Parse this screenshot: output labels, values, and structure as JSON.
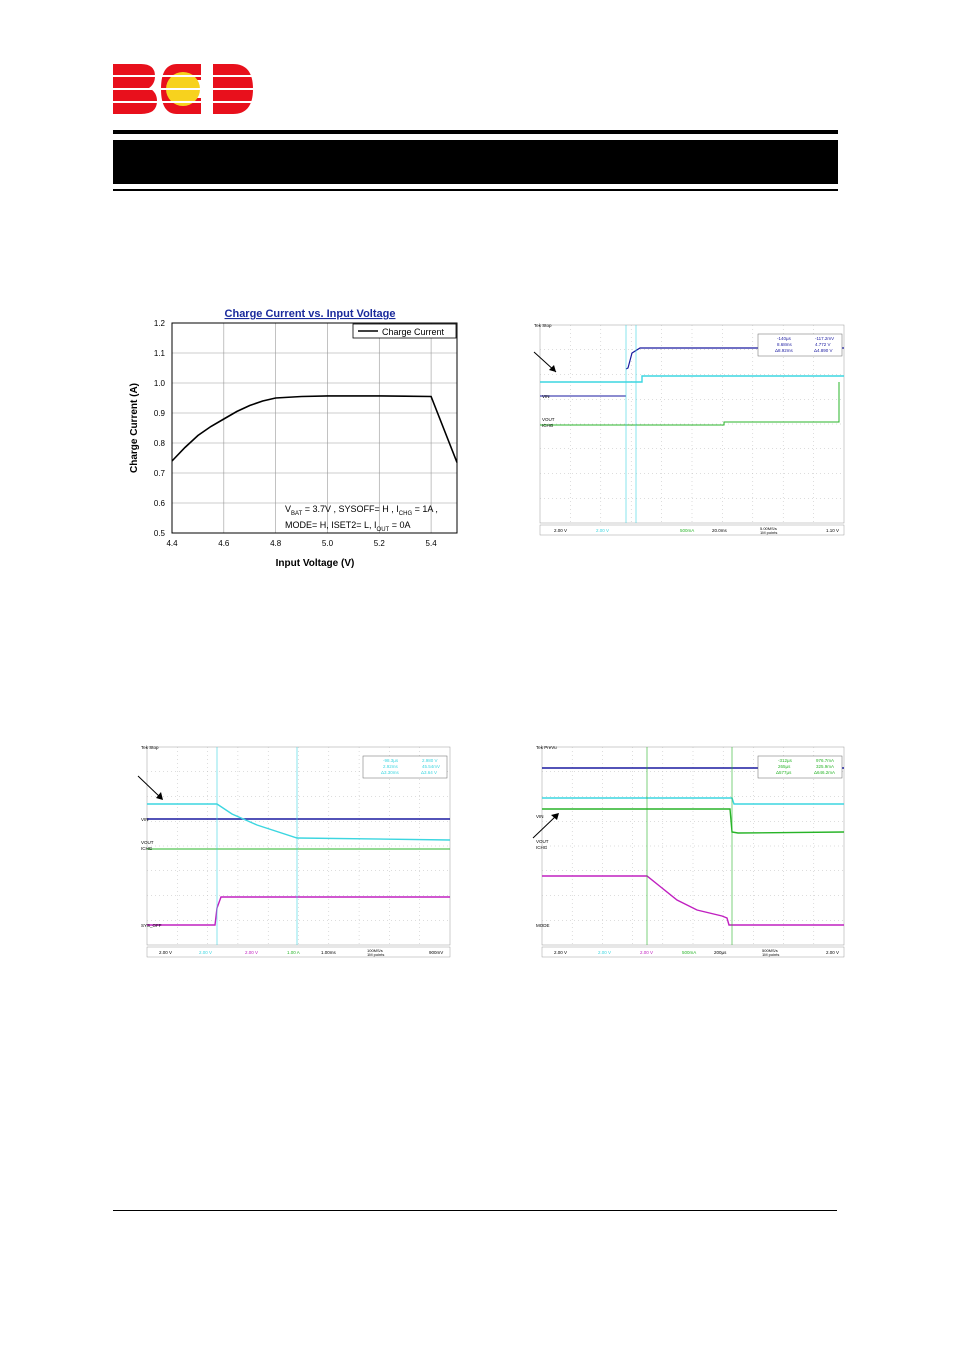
{
  "logo": {
    "text": "BCD",
    "color_primary": "#e8101c",
    "color_accent": "#f7d21e"
  },
  "chart_data": {
    "type": "line",
    "title": "Charge Current vs. Input Voltage",
    "xlabel": "Input Voltage (V)",
    "ylabel": "Charge Current (A)",
    "xlim": [
      4.4,
      5.5
    ],
    "ylim": [
      0.5,
      1.2
    ],
    "x_ticks": [
      "4.4",
      "4.6",
      "4.8",
      "5.0",
      "5.2",
      "5.4"
    ],
    "y_ticks": [
      "0.5",
      "0.6",
      "0.7",
      "0.8",
      "0.9",
      "1.0",
      "1.1",
      "1.2"
    ],
    "grid": true,
    "legend_position": "top-right",
    "series": [
      {
        "name": "Charge Current",
        "x": [
          4.4,
          4.45,
          4.5,
          4.55,
          4.6,
          4.65,
          4.7,
          4.75,
          4.8,
          4.9,
          5.0,
          5.1,
          5.2,
          5.3,
          5.4,
          5.5
        ],
        "y": [
          0.74,
          0.785,
          0.825,
          0.855,
          0.88,
          0.905,
          0.925,
          0.94,
          0.95,
          0.955,
          0.957,
          0.957,
          0.957,
          0.956,
          0.955,
          0.735
        ]
      }
    ],
    "annotation_line1": {
      "v": "V",
      "bat": "BAT",
      "rest1": " = 3.7V , SYSOFF= H , I",
      "chg": "CHG",
      "rest2": " = 1A ,"
    },
    "annotation_line2": {
      "pre": "MODE= H, ISET2= L, I",
      "out": "OUT",
      "post": " = 0A"
    }
  },
  "scopes": [
    {
      "status": "Tek Stop",
      "labels": [
        "VIN",
        "VOUT",
        "ICHG"
      ],
      "readout": [
        "-140µs",
        "-117.2mV",
        "8.68ms",
        "4.772 V",
        "Δ8.92ms",
        "Δ4.890 V"
      ],
      "bottom": [
        "2.00 V",
        "2.00 V",
        "500mA",
        "20.0ms",
        "5.00MS/s",
        "1M points",
        "1.10 V"
      ]
    },
    {
      "status": "Tek Stop",
      "labels": [
        "VIN",
        "VOUT",
        "ICHG",
        "SYS_OFF"
      ],
      "readout": [
        "-98.3µs",
        "2.980 V",
        "2.92ms",
        "45.54mV",
        "Δ3.30ms",
        "Δ3.64 V"
      ],
      "bottom": [
        "2.00 V",
        "2.00 V",
        "2.00 V",
        "1.00 A",
        "1.00ms",
        "100MS/s",
        "1M points",
        "900mV"
      ]
    },
    {
      "status": "Tek PreVu",
      "labels": [
        "VIN",
        "VOUT",
        "ICHG",
        "MODE"
      ],
      "readout": [
        "-312µs",
        "976.7mA",
        "265µs",
        "325.9mA",
        "Δ577µs",
        "Δ646.2mA"
      ],
      "bottom": [
        "2.00 V",
        "2.00 V",
        "2.00 V",
        "500mA",
        "200µs",
        "500MS/s",
        "1M points",
        "2.00 V"
      ]
    }
  ]
}
